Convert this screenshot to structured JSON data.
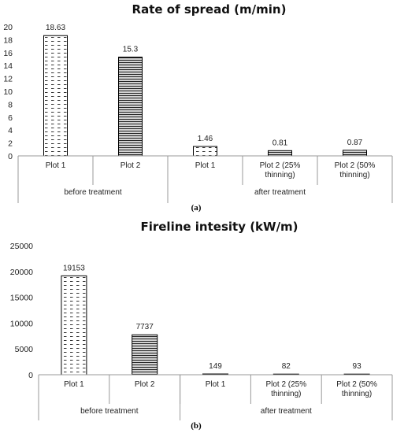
{
  "chart_data": [
    {
      "type": "bar",
      "title": "Rate of spread (m/min)",
      "panel_label": "(a)",
      "categories": [
        "Plot 1",
        "Plot 2",
        "Plot 1",
        "Plot 2 (25% thinning)",
        "Plot 2 (50% thinning)"
      ],
      "category_lines": [
        [
          "Plot 1"
        ],
        [
          "Plot 2"
        ],
        [
          "Plot 1"
        ],
        [
          "Plot 2 (25%",
          "thinning)"
        ],
        [
          "Plot 2 (50%",
          "thinning)"
        ]
      ],
      "groups": [
        {
          "label": "before treatment",
          "span": [
            0,
            1
          ]
        },
        {
          "label": "after treatment",
          "span": [
            2,
            4
          ]
        }
      ],
      "values": [
        18.63,
        15.3,
        1.46,
        0.81,
        0.87
      ],
      "value_labels": [
        "18.63",
        "15.3",
        "1.46",
        "0.81",
        "0.87"
      ],
      "patterns": [
        "dash",
        "hline",
        "dash",
        "hline",
        "hline"
      ],
      "ylim": [
        0,
        20
      ],
      "yticks": [
        0,
        2,
        4,
        6,
        8,
        10,
        12,
        14,
        16,
        18,
        20
      ],
      "xlabel": "",
      "ylabel": "",
      "grid": false
    },
    {
      "type": "bar",
      "title": "Fireline intesity (kW/m)",
      "panel_label": "(b)",
      "categories": [
        "Plot 1",
        "Plot 2",
        "Plot 1",
        "Plot 2 (25% thinning)",
        "Plot 2 (50% thinning)"
      ],
      "category_lines": [
        [
          "Plot 1"
        ],
        [
          "Plot 2"
        ],
        [
          "Plot 1"
        ],
        [
          "Plot 2 (25%",
          "thinning)"
        ],
        [
          "Plot 2 (50%",
          "thinning)"
        ]
      ],
      "groups": [
        {
          "label": "before treatment",
          "span": [
            0,
            1
          ]
        },
        {
          "label": "after treatment",
          "span": [
            2,
            4
          ]
        }
      ],
      "values": [
        19153,
        7737,
        149,
        82,
        93
      ],
      "value_labels": [
        "19153",
        "7737",
        "149",
        "82",
        "93"
      ],
      "patterns": [
        "dash",
        "hline",
        "dash",
        "hline",
        "hline"
      ],
      "ylim": [
        0,
        25000
      ],
      "yticks": [
        0,
        5000,
        10000,
        15000,
        20000,
        25000
      ],
      "xlabel": "",
      "ylabel": "",
      "grid": false
    }
  ]
}
